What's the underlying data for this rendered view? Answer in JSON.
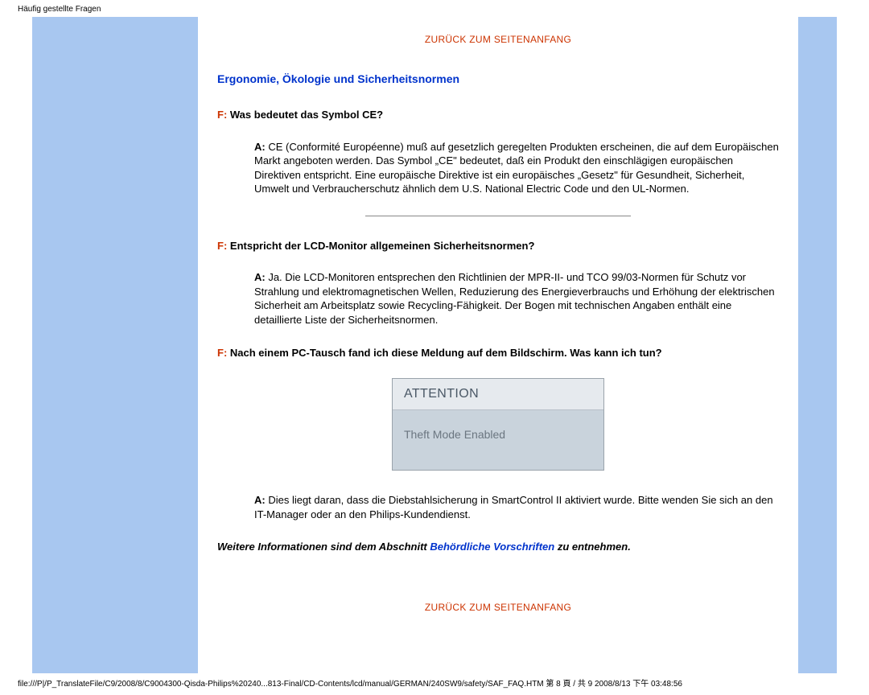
{
  "page_header": "Häufig gestellte Fragen",
  "back_to_top": "ZURÜCK ZUM SEITENANFANG",
  "section_title": "Ergonomie, Ökologie und Sicherheitsnormen",
  "qa": [
    {
      "q_prefix": "F:",
      "q": " Was bedeutet das Symbol CE?",
      "a_prefix": "A:",
      "a": " CE (Conformité Européenne) muß auf gesetzlich geregelten Produkten erscheinen, die auf dem Europäischen Markt angeboten werden. Das Symbol „CE\" bedeutet, daß ein Produkt den einschlägigen europäischen Direktiven entspricht. Eine europäische Direktive ist ein europäisches „Gesetz\" für Gesundheit, Sicherheit, Umwelt und Verbraucherschutz ähnlich dem U.S. National Electric Code und den UL-Normen."
    },
    {
      "q_prefix": "F:",
      "q": " Entspricht der LCD-Monitor allgemeinen Sicherheitsnormen?",
      "a_prefix": "A:",
      "a": " Ja. Die LCD-Monitoren entsprechen den Richtlinien der MPR-II- und TCO 99/03-Normen für Schutz vor Strahlung und elektromagnetischen Wellen, Reduzierung des Energieverbrauchs und Erhöhung der elektrischen Sicherheit am Arbeitsplatz sowie Recycling-Fähigkeit. Der Bogen mit technischen Angaben enthält eine detaillierte Liste der Sicherheitsnormen."
    },
    {
      "q_prefix": "F:",
      "q": " Nach einem PC-Tausch fand ich diese Meldung auf dem Bildschirm. Was kann ich tun?",
      "a_prefix": "A:",
      "a": " Dies liegt daran, dass die Diebstahlsicherung in SmartControl II aktiviert wurde. Bitte wenden Sie sich an den IT-Manager oder an den Philips-Kundendienst."
    }
  ],
  "attention_box": {
    "title": "ATTENTION",
    "body": "Theft Mode Enabled"
  },
  "more_info_pre": "Weitere Informationen sind dem Abschnitt ",
  "more_info_link": "Behördliche Vorschriften",
  "more_info_post": " zu entnehmen.",
  "footer_path": "file:///P|/P_TranslateFile/C9/2008/8/C9004300-Qisda-Philips%20240...813-Final/CD-Contents/lcd/manual/GERMAN/240SW9/safety/SAF_FAQ.HTM 第 8 頁 / 共 9 2008/8/13 下午 03:48:56",
  "colors": {
    "stripe": "#a8c7f0",
    "link_red": "#cc3300",
    "title_blue": "#0033cc",
    "attention_bg": "#c9d3dc",
    "attention_header_bg": "#e6eaee",
    "attention_text": "#6b7680"
  }
}
